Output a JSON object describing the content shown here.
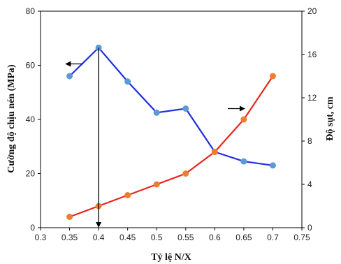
{
  "chart_data": {
    "type": "line",
    "title": "",
    "xlabel": "Tỷ lệ N/X",
    "ylabel_left": "Cường độ chịu nén (MPa)",
    "ylabel_right": "Độ sụt, cm",
    "xlim": [
      0.3,
      0.75
    ],
    "ylim_left": [
      0,
      80
    ],
    "ylim_right": [
      0,
      20
    ],
    "x_ticks": [
      "0.3",
      "0.35",
      "0.4",
      "0.45",
      "0.5",
      "0.55",
      "0.6",
      "0.65",
      "0.7",
      "0.75"
    ],
    "y_left_ticks": [
      "0",
      "20",
      "40",
      "60",
      "80"
    ],
    "y_right_ticks": [
      "0",
      "4",
      "8",
      "12",
      "16",
      "20"
    ],
    "grid": false,
    "series": [
      {
        "axis": "left",
        "color": "#1f2ee0",
        "marker_color": "#5b9bd5",
        "x": [
          0.35,
          0.4,
          0.45,
          0.5,
          0.55,
          0.6,
          0.65,
          0.7
        ],
        "y": [
          56,
          66.5,
          54,
          42.5,
          44,
          28,
          24.5,
          23
        ]
      },
      {
        "axis": "right",
        "color": "#e8261c",
        "marker_color": "#ed7d31",
        "x": [
          0.35,
          0.4,
          0.45,
          0.5,
          0.55,
          0.6,
          0.65,
          0.7
        ],
        "y": [
          1,
          2,
          3,
          4,
          5,
          7,
          10,
          14
        ]
      }
    ],
    "annotations": [
      {
        "type": "arrow",
        "direction": "left",
        "target_axis": "left",
        "at_x": 0.375,
        "at_y_left": 60
      },
      {
        "type": "arrow",
        "direction": "right",
        "target_axis": "right",
        "at_x": 0.62,
        "at_y_right": 11
      },
      {
        "type": "arrow",
        "direction": "down",
        "at_x": 0.4,
        "from_y_left": 66.5,
        "to_y_left": 0
      }
    ]
  }
}
